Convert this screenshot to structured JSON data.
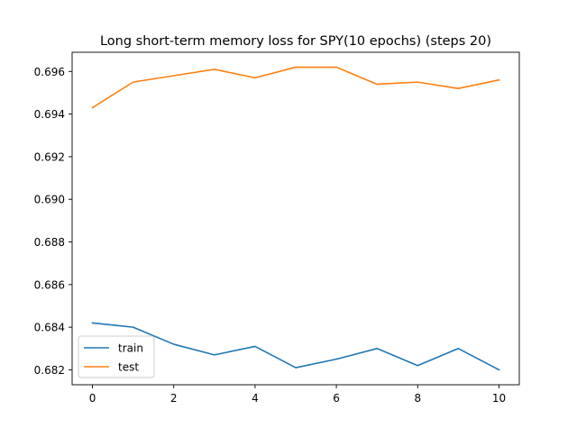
{
  "chart_data": {
    "type": "line",
    "title": "Long short-term memory loss for SPY(10 epochs) (steps 20)",
    "xlabel": "",
    "ylabel": "",
    "x": [
      0,
      1,
      2,
      3,
      4,
      5,
      6,
      7,
      8,
      9,
      10
    ],
    "x_ticks": [
      0,
      2,
      4,
      6,
      8,
      10
    ],
    "x_tick_labels": [
      "0",
      "2",
      "4",
      "6",
      "8",
      "10"
    ],
    "xlim": [
      -0.5,
      10.5
    ],
    "y_ticks": [
      0.682,
      0.684,
      0.686,
      0.688,
      0.69,
      0.692,
      0.694,
      0.696
    ],
    "y_tick_labels": [
      "0.682",
      "0.684",
      "0.686",
      "0.688",
      "0.690",
      "0.692",
      "0.694",
      "0.696"
    ],
    "ylim": [
      0.6813,
      0.6969
    ],
    "grid": false,
    "legend_position": "lower-left",
    "series": [
      {
        "name": "train",
        "color": "#1f77b4",
        "values": [
          0.6842,
          0.684,
          0.6832,
          0.6827,
          0.6831,
          0.6821,
          0.6825,
          0.683,
          0.6822,
          0.683,
          0.682
        ]
      },
      {
        "name": "test",
        "color": "#ff7f0e",
        "values": [
          0.6943,
          0.6955,
          0.6958,
          0.6961,
          0.6957,
          0.6962,
          0.6962,
          0.6954,
          0.6955,
          0.6952,
          0.6956
        ]
      }
    ]
  }
}
